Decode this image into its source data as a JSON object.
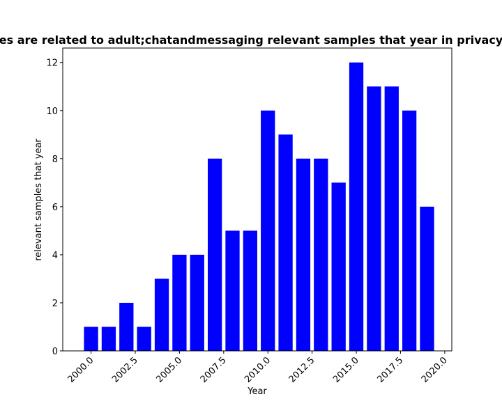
{
  "chart_data": {
    "type": "bar",
    "title": "es are related to adult;chatandmessaging relevant samples that year in privacy",
    "xlabel": "Year",
    "ylabel": "relevant samples that year",
    "x": [
      2000,
      2001,
      2002,
      2003,
      2004,
      2005,
      2006,
      2007,
      2008,
      2009,
      2010,
      2011,
      2012,
      2013,
      2014,
      2015,
      2016,
      2017,
      2018,
      2019
    ],
    "values": [
      1,
      1,
      2,
      1,
      3,
      4,
      4,
      8,
      5,
      5,
      10,
      9,
      8,
      8,
      7,
      12,
      11,
      11,
      10,
      6
    ],
    "xlim": [
      1998.4,
      2020.4
    ],
    "ylim": [
      0,
      12.6
    ],
    "xticks": [
      "2000.0",
      "2002.5",
      "2005.0",
      "2007.5",
      "2010.0",
      "2012.5",
      "2015.0",
      "2017.5",
      "2020.0"
    ],
    "yticks": [
      "0",
      "2",
      "4",
      "6",
      "8",
      "10",
      "12"
    ],
    "grid": false,
    "bar_color": "#0000ff"
  }
}
